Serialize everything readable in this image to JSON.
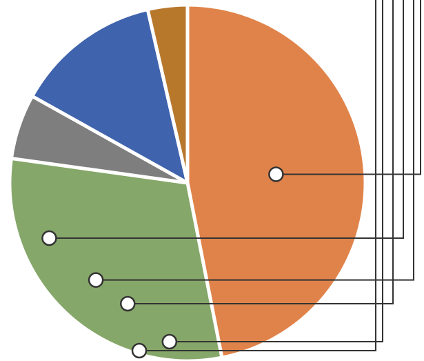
{
  "chart_data": {
    "type": "pie",
    "title": "",
    "legend": "none",
    "slices": [
      {
        "value": 46.9,
        "color": "#e0834a"
      },
      {
        "value": 30.3,
        "color": "#86a76a"
      },
      {
        "value": 5.9,
        "color": "#7e7e7e"
      },
      {
        "value": 13.3,
        "color": "#3f63ad"
      },
      {
        "value": 3.6,
        "color": "#b8782c"
      }
    ]
  },
  "colors": {
    "separator": "#ffffff",
    "leader_line": "#333333",
    "marker_fill": "#ffffff",
    "marker_stroke": "#333333"
  }
}
